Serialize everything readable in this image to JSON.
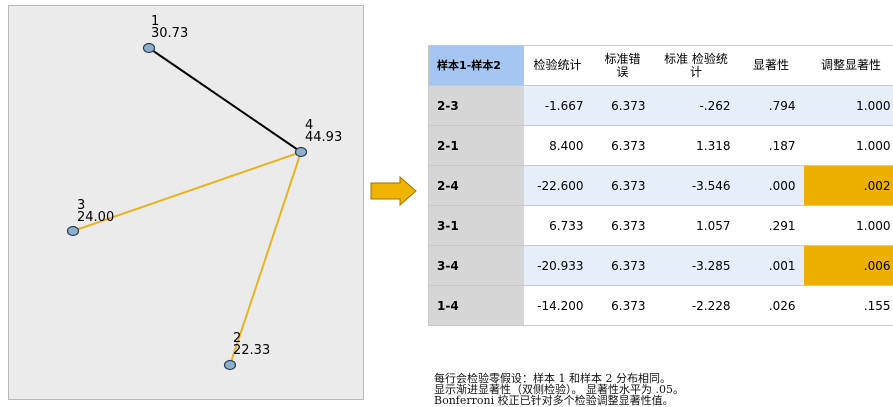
{
  "graph": {
    "nodes": [
      {
        "id": "1",
        "value": "30.73"
      },
      {
        "id": "4",
        "value": "44.93"
      },
      {
        "id": "3",
        "value": "24.00"
      },
      {
        "id": "2",
        "value": "22.33"
      }
    ]
  },
  "table": {
    "headers": {
      "pair": "样本1-样本2",
      "test_stat": "检验统计",
      "std_error": "标准错误",
      "std_test_stat": "标准 检验统计",
      "significance": "显著性",
      "adj_significance": "调整显著性"
    },
    "rows": [
      {
        "pair": "2-3",
        "test_stat": "-1.667",
        "std_error": "6.373",
        "std_test_stat": "-.262",
        "sig": ".794",
        "adj_sig": "1.000"
      },
      {
        "pair": "2-1",
        "test_stat": "8.400",
        "std_error": "6.373",
        "std_test_stat": "1.318",
        "sig": ".187",
        "adj_sig": "1.000"
      },
      {
        "pair": "2-4",
        "test_stat": "-22.600",
        "std_error": "6.373",
        "std_test_stat": "-3.546",
        "sig": ".000",
        "adj_sig": ".002"
      },
      {
        "pair": "3-1",
        "test_stat": "6.733",
        "std_error": "6.373",
        "std_test_stat": "1.057",
        "sig": ".291",
        "adj_sig": "1.000"
      },
      {
        "pair": "3-4",
        "test_stat": "-20.933",
        "std_error": "6.373",
        "std_test_stat": "-3.285",
        "sig": ".001",
        "adj_sig": ".006"
      },
      {
        "pair": "1-4",
        "test_stat": "-14.200",
        "std_error": "6.373",
        "std_test_stat": "-2.228",
        "sig": ".026",
        "adj_sig": ".155"
      }
    ],
    "highlight_color": "#eeb000",
    "header_accent": "#a6c6f2"
  },
  "notes": {
    "line1": "每行会检验零假设：样本 1 和样本 2 分布相同。",
    "line2": "显示渐进显著性（双侧检验）。 显著性水平为 .05。",
    "line3": "Bonferroni 校正已针对多个检验调整显著性值。"
  },
  "colors": {
    "edge_significant": "#e8b41e",
    "edge_other": "#000000",
    "node_fill": "#8fb0c8",
    "arrow": "#f0b400"
  }
}
